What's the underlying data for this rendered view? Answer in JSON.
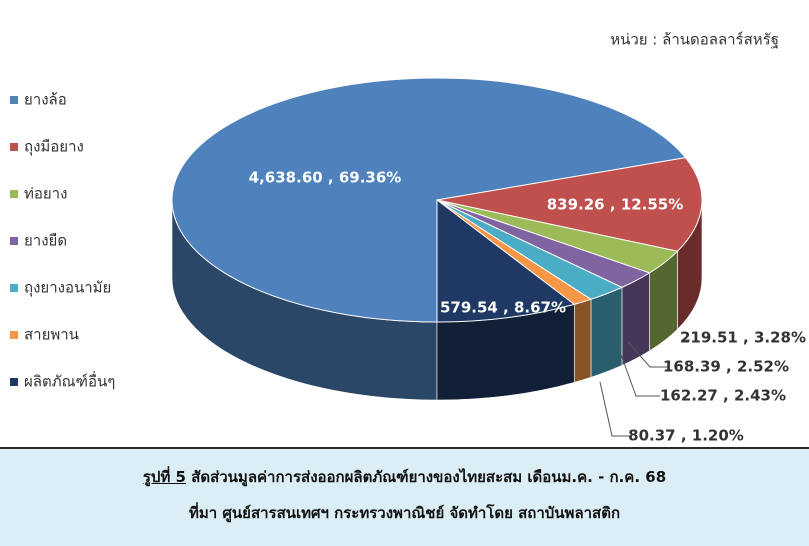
{
  "chart_data": {
    "type": "pie3d",
    "unit_note": "หน่วย : ล้านดอลลาร์สหรัฐ",
    "categories": [
      "ยางล้อ",
      "ถุงมือยาง",
      "ท่อยาง",
      "ยางยืด",
      "ถุงยางอนามัย",
      "สายพาน",
      "ผลิตภัณฑ์อื่นๆ"
    ],
    "values": [
      4638.6,
      839.26,
      219.51,
      168.39,
      162.27,
      80.37,
      579.54
    ],
    "value_labels": [
      "4,638.60 , 69.36%",
      "839.26 , 12.55%",
      "219.51 , 3.28%",
      "168.39 , 2.52%",
      "162.27 , 2.43%",
      "80.37 , 1.20%",
      "579.54 , 8.67%"
    ],
    "colors": [
      "#4f81bd",
      "#c0504d",
      "#9bbb59",
      "#8064a2",
      "#4bacc6",
      "#f79646",
      "#1f3864"
    ],
    "legend": "left"
  },
  "caption": {
    "figure": "รูปที่ 5",
    "title": " สัดส่วนมูลค่าการส่งออกผลิตภัณฑ์ยางของไทยสะสม เดือนม.ค. - ก.ค. 68",
    "source": "ที่มา ศูนย์สารสนเทศฯ กระทรวงพาณิชย์ จัดทำโดย สถาบันพลาสติก"
  }
}
